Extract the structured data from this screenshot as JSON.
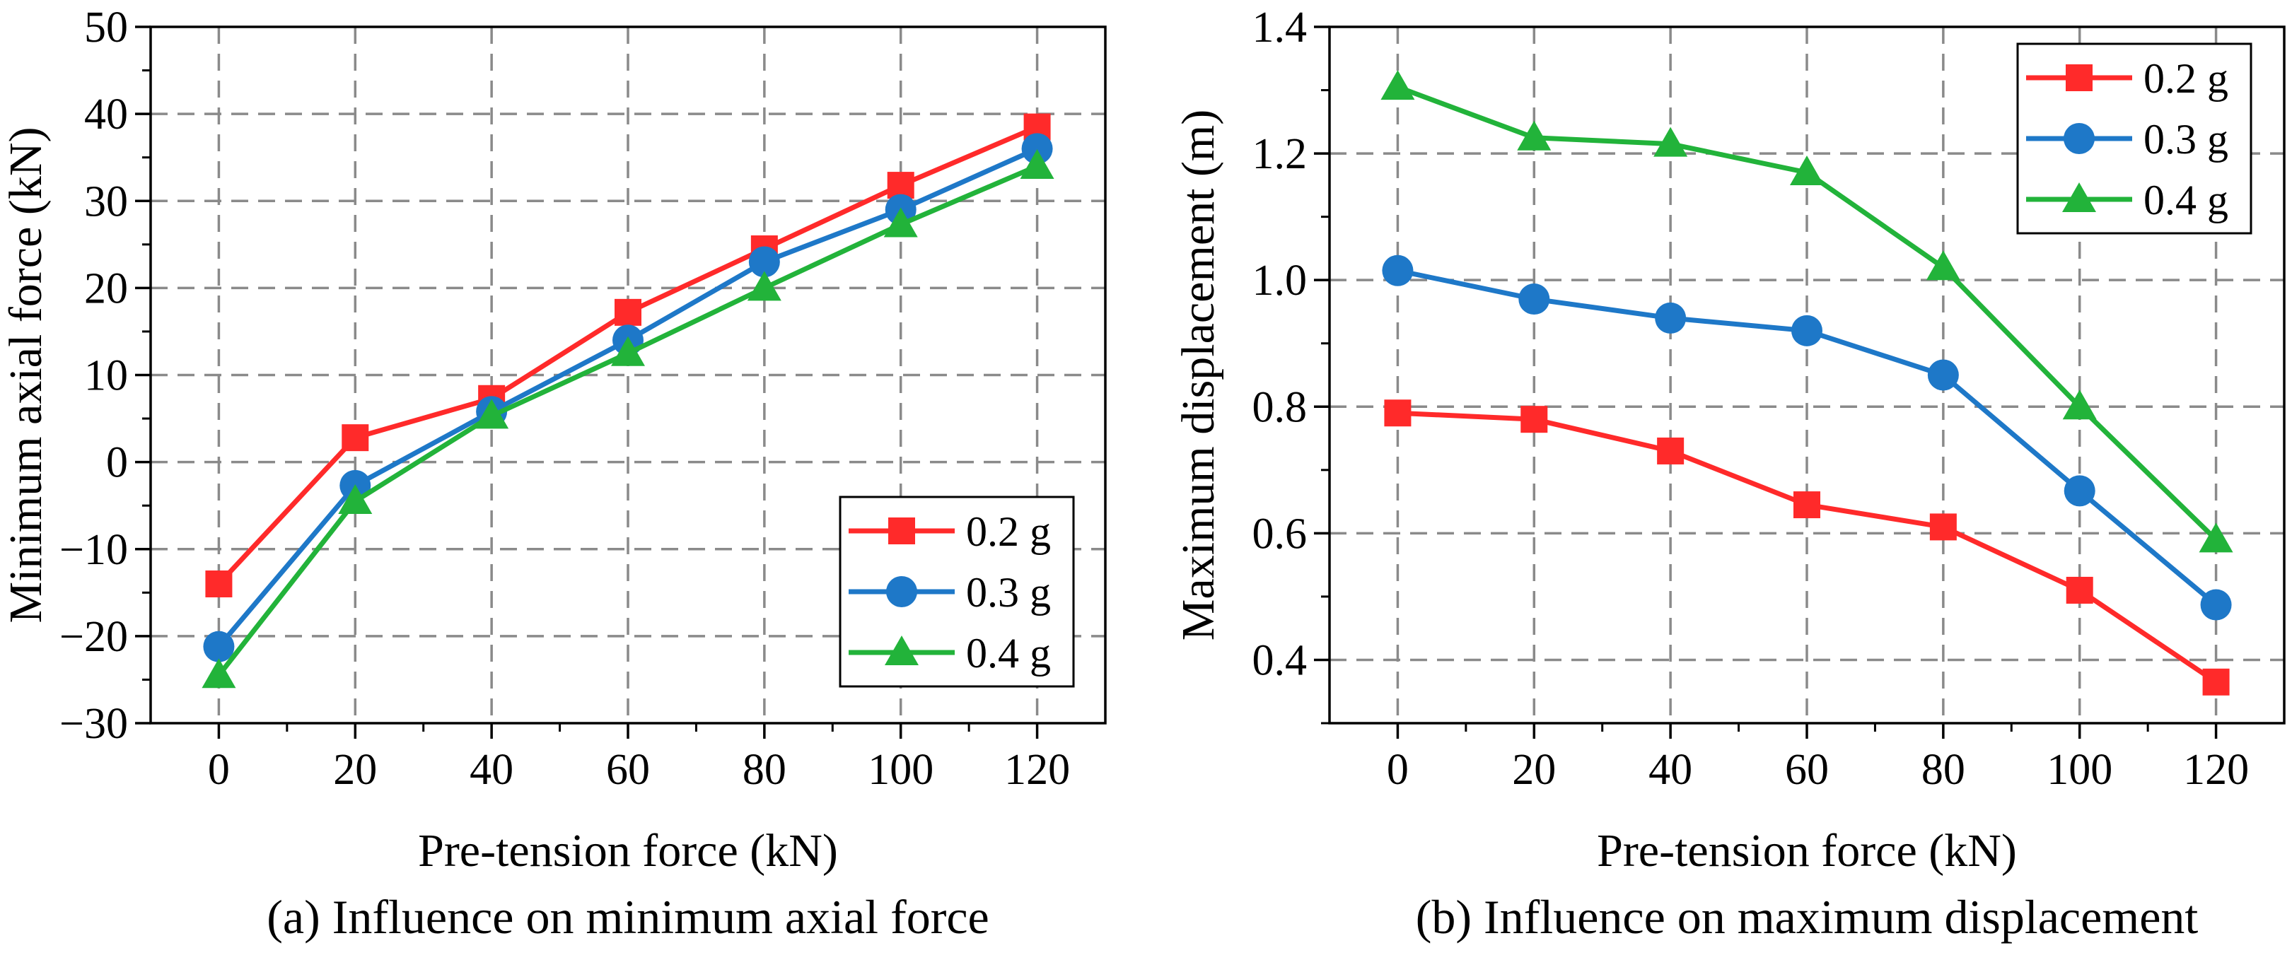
{
  "colors": {
    "s02": "#ff2a2a",
    "s03": "#1e78c8",
    "s04": "#22b33a",
    "grid": "#8a8a8a",
    "axis": "#000000"
  },
  "chart_data": [
    {
      "id": "a",
      "type": "line",
      "caption": "(a) Influence on minimum axial force",
      "xlabel": "Pre-tension force (kN)",
      "ylabel": "Minimum axial force (kN)",
      "x": [
        0,
        20,
        40,
        60,
        80,
        100,
        120
      ],
      "x_ticks": [
        "0",
        "20",
        "40",
        "60",
        "80",
        "100",
        "120"
      ],
      "xlim": [
        -10,
        130
      ],
      "ylim": [
        -30,
        50
      ],
      "y_ticks": [
        -30,
        -20,
        -10,
        0,
        10,
        20,
        30,
        40,
        50
      ],
      "y_tick_labels": [
        "−30",
        "−20",
        "−10",
        "0",
        "10",
        "20",
        "30",
        "40",
        "50"
      ],
      "grid": true,
      "legend_position": "bottom-right",
      "series": [
        {
          "name": "0.2 g",
          "marker": "square",
          "color_key": "s02",
          "values": [
            -14,
            2.8,
            7.3,
            17.2,
            24.5,
            31.8,
            38.5
          ]
        },
        {
          "name": "0.3 g",
          "marker": "circle",
          "color_key": "s03",
          "values": [
            -21.2,
            -2.7,
            5.8,
            14,
            23,
            29,
            36
          ]
        },
        {
          "name": "0.4 g",
          "marker": "triangle",
          "color_key": "s04",
          "values": [
            -24.5,
            -4.5,
            5.3,
            12.5,
            20,
            27.3,
            34
          ]
        }
      ]
    },
    {
      "id": "b",
      "type": "line",
      "caption": "(b) Influence on maximum displacement",
      "xlabel": "Pre-tension force (kN)",
      "ylabel": "Maximum displacement (m)",
      "x": [
        0,
        20,
        40,
        60,
        80,
        100,
        120
      ],
      "x_ticks": [
        "0",
        "20",
        "40",
        "60",
        "80",
        "100",
        "120"
      ],
      "xlim": [
        -10,
        130
      ],
      "ylim": [
        0.3,
        1.4
      ],
      "y_ticks": [
        0.4,
        0.6,
        0.8,
        1.0,
        1.2,
        1.4
      ],
      "y_tick_labels": [
        "0.4",
        "0.6",
        "0.8",
        "1.0",
        "1.2",
        "1.4"
      ],
      "grid": true,
      "legend_position": "top-right",
      "series": [
        {
          "name": "0.2 g",
          "marker": "square",
          "color_key": "s02",
          "values": [
            0.79,
            0.78,
            0.73,
            0.645,
            0.61,
            0.51,
            0.365
          ]
        },
        {
          "name": "0.3 g",
          "marker": "circle",
          "color_key": "s03",
          "values": [
            1.015,
            0.97,
            0.94,
            0.92,
            0.85,
            0.667,
            0.487
          ]
        },
        {
          "name": "0.4 g",
          "marker": "triangle",
          "color_key": "s04",
          "values": [
            1.305,
            1.225,
            1.215,
            1.17,
            1.02,
            0.8,
            0.59
          ]
        }
      ]
    }
  ]
}
